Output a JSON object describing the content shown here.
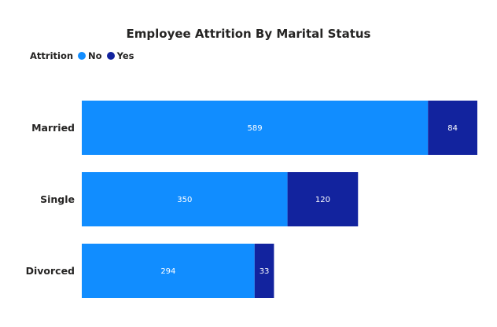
{
  "chart_data": {
    "type": "bar",
    "orientation": "horizontal",
    "stacked": true,
    "title": "Employee Attrition By Marital Status",
    "legend_title": "Attrition",
    "legend_position": "top-left",
    "categories": [
      "Married",
      "Single",
      "Divorced"
    ],
    "series": [
      {
        "name": "No",
        "color": "#118DFF",
        "values": [
          589,
          350,
          294
        ]
      },
      {
        "name": "Yes",
        "color": "#12239E",
        "values": [
          84,
          120,
          33
        ]
      }
    ],
    "xlim": [
      0,
      673
    ],
    "grid": false,
    "xlabel": "",
    "ylabel": ""
  }
}
